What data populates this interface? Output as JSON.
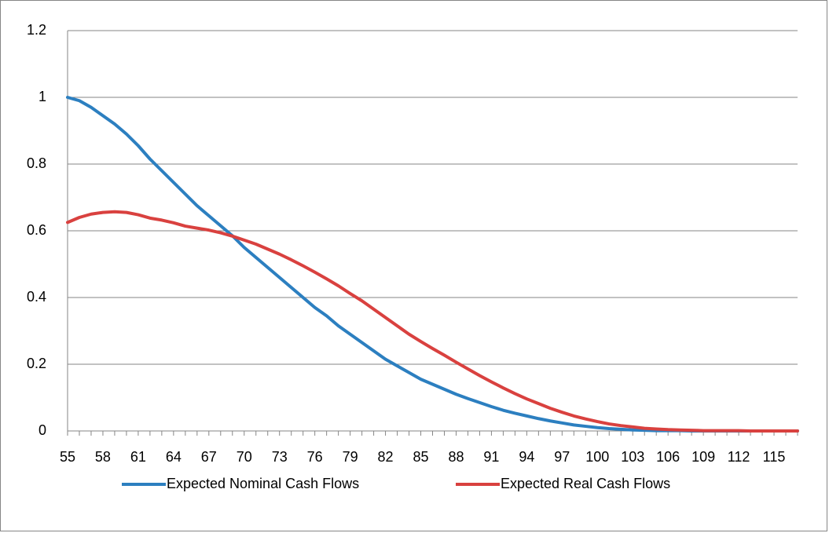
{
  "chart_data": {
    "type": "line",
    "categories": [
      "55",
      null,
      null,
      "58",
      null,
      null,
      "61",
      null,
      null,
      "64",
      null,
      null,
      "67",
      null,
      null,
      "70",
      null,
      null,
      "73",
      null,
      null,
      "76",
      null,
      null,
      "79",
      null,
      null,
      "82",
      null,
      null,
      "85",
      null,
      null,
      "88",
      null,
      null,
      "91",
      null,
      null,
      "94",
      null,
      null,
      "97",
      null,
      null,
      "100",
      null,
      null,
      "103",
      null,
      null,
      "106",
      null,
      null,
      "109",
      null,
      null,
      "112",
      null,
      null,
      "115",
      null,
      null
    ],
    "series": [
      {
        "name": "Expected Nominal Cash Flows",
        "color": "#2c7fc0",
        "values": [
          1.0,
          0.99,
          0.97,
          0.945,
          0.92,
          0.89,
          0.855,
          0.815,
          0.78,
          0.745,
          0.71,
          0.675,
          0.645,
          0.615,
          0.585,
          0.55,
          0.52,
          0.49,
          0.46,
          0.43,
          0.4,
          0.37,
          0.345,
          0.315,
          0.29,
          0.265,
          0.24,
          0.215,
          0.195,
          0.175,
          0.155,
          0.14,
          0.125,
          0.11,
          0.097,
          0.085,
          0.073,
          0.062,
          0.053,
          0.045,
          0.037,
          0.03,
          0.024,
          0.018,
          0.014,
          0.01,
          0.007,
          0.005,
          0.003,
          0.002,
          0.001,
          0.001,
          0.001,
          0,
          0,
          0,
          0,
          0,
          0,
          0,
          0,
          0,
          0
        ]
      },
      {
        "name": "Expected Real Cash Flows",
        "color": "#d9413f",
        "values": [
          0.625,
          0.64,
          0.65,
          0.655,
          0.657,
          0.655,
          0.648,
          0.638,
          0.632,
          0.624,
          0.614,
          0.608,
          0.602,
          0.594,
          0.584,
          0.572,
          0.56,
          0.545,
          0.53,
          0.513,
          0.495,
          0.476,
          0.456,
          0.435,
          0.412,
          0.39,
          0.365,
          0.34,
          0.315,
          0.29,
          0.268,
          0.247,
          0.227,
          0.206,
          0.186,
          0.166,
          0.147,
          0.129,
          0.112,
          0.096,
          0.082,
          0.068,
          0.056,
          0.045,
          0.036,
          0.028,
          0.021,
          0.016,
          0.012,
          0.008,
          0.006,
          0.004,
          0.003,
          0.002,
          0.001,
          0.001,
          0.001,
          0.001,
          0,
          0,
          0,
          0,
          0
        ]
      }
    ],
    "ylim": [
      0,
      1.2
    ],
    "yticks": [
      0,
      0.2,
      0.4,
      0.6,
      0.8,
      1,
      1.2
    ],
    "grid": true,
    "legend": "bottom"
  }
}
